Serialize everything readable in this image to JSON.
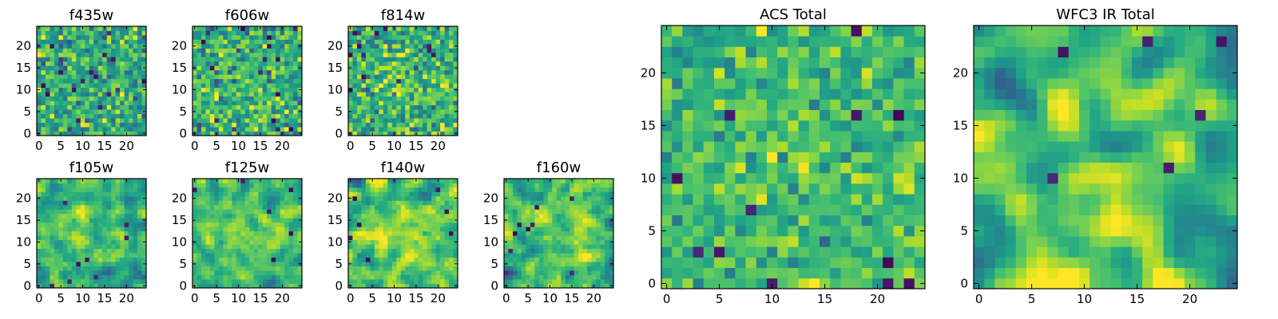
{
  "chart_data": {
    "type": "heatmap",
    "colormap": "viridis",
    "grid_size": 25,
    "panels": [
      {
        "name": "f435w",
        "title": "f435w",
        "xticks": [
          0,
          5,
          10,
          15,
          20
        ],
        "yticks": [
          0,
          5,
          10,
          15,
          20
        ],
        "seed": 11,
        "smooth": 0,
        "mean": 0.62,
        "contrast": 0.16,
        "center_boost": 0.0,
        "dark_spots": 14
      },
      {
        "name": "f606w",
        "title": "f606w",
        "xticks": [
          0,
          5,
          10,
          15,
          20
        ],
        "yticks": [
          0,
          5,
          10,
          15,
          20
        ],
        "seed": 23,
        "smooth": 0,
        "mean": 0.62,
        "contrast": 0.16,
        "center_boost": 0.05,
        "dark_spots": 14
      },
      {
        "name": "f814w",
        "title": "f814w",
        "xticks": [
          0,
          5,
          10,
          15,
          20
        ],
        "yticks": [
          0,
          5,
          10,
          15,
          20
        ],
        "seed": 37,
        "smooth": 0,
        "mean": 0.64,
        "contrast": 0.16,
        "center_boost": 0.06,
        "dark_spots": 12
      },
      {
        "name": "f105w",
        "title": "f105w",
        "xticks": [
          0,
          5,
          10,
          15,
          20
        ],
        "yticks": [
          0,
          5,
          10,
          15,
          20
        ],
        "seed": 41,
        "smooth": 1,
        "mean": 0.6,
        "contrast": 0.2,
        "center_boost": 0.15,
        "dark_spots": 8
      },
      {
        "name": "f125w",
        "title": "f125w",
        "xticks": [
          0,
          5,
          10,
          15,
          20
        ],
        "yticks": [
          0,
          5,
          10,
          15,
          20
        ],
        "seed": 53,
        "smooth": 1,
        "mean": 0.66,
        "contrast": 0.18,
        "center_boost": 0.1,
        "dark_spots": 6
      },
      {
        "name": "f140w",
        "title": "f140w",
        "xticks": [
          0,
          5,
          10,
          15,
          20
        ],
        "yticks": [
          0,
          5,
          10,
          15,
          20
        ],
        "seed": 67,
        "smooth": 1,
        "mean": 0.66,
        "contrast": 0.2,
        "center_boost": 0.1,
        "dark_spots": 7
      },
      {
        "name": "f160w",
        "title": "f160w",
        "xticks": [
          0,
          5,
          10,
          15,
          20
        ],
        "yticks": [
          0,
          5,
          10,
          15,
          20
        ],
        "seed": 79,
        "smooth": 1,
        "mean": 0.64,
        "contrast": 0.2,
        "center_boost": 0.15,
        "dark_spots": 8
      },
      {
        "name": "acs-total",
        "title": "ACS Total",
        "xticks": [
          0,
          5,
          10,
          15,
          20
        ],
        "yticks": [
          0,
          5,
          10,
          15,
          20
        ],
        "seed": 97,
        "smooth": 0,
        "mean": 0.66,
        "contrast": 0.12,
        "center_boost": 0.05,
        "dark_spots": 12
      },
      {
        "name": "wfc3-ir-total",
        "title": "WFC3 IR Total",
        "xticks": [
          0,
          5,
          10,
          15,
          20
        ],
        "yticks": [
          0,
          5,
          10,
          15,
          20
        ],
        "seed": 113,
        "smooth": 2,
        "mean": 0.62,
        "contrast": 0.22,
        "center_boost": 0.22,
        "dark_spots": 6
      }
    ]
  }
}
